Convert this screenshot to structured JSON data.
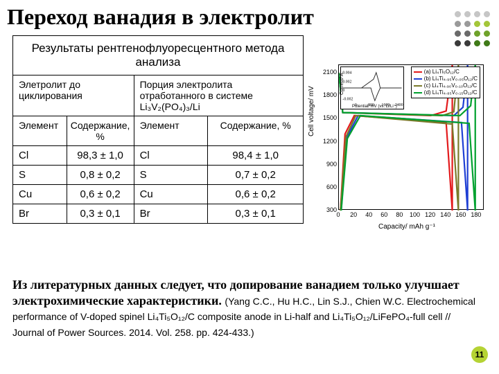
{
  "title": "Переход ванадия в электролит",
  "dots_colors": [
    "#c6c6c6",
    "#c6c6c6",
    "#c6c6c6",
    "#c6c6c6",
    "#9a9a9a",
    "#9a9a9a",
    "#a4c639",
    "#a4c639",
    "#6a6a6a",
    "#6a6a6a",
    "#6fa22a",
    "#6fa22a",
    "#3a3a3a",
    "#3a3a3a",
    "#3f7a17",
    "#3f7a17"
  ],
  "table": {
    "caption": "Результаты рентгенофлуоресцентного метода анализа",
    "col1_header": "Элетролит до циклирования",
    "col2_header": "Порция электролита отработанного в системе Li₃V₂(PO₄)₃/Li",
    "sub_el": "Элемент",
    "sub_pct": "Содержание, %",
    "rows": [
      {
        "e1": "Cl",
        "v1": "98,3 ± 1,0",
        "e2": "Cl",
        "v2": "98,4 ± 1,0"
      },
      {
        "e1": "S",
        "v1": "0,8 ± 0,2",
        "e2": "S",
        "v2": "0,7 ± 0,2"
      },
      {
        "e1": "Cu",
        "v1": "0,6 ± 0,2",
        "e2": "Cu",
        "v2": "0,6 ± 0,2"
      },
      {
        "e1": "Br",
        "v1": "0,3 ± 0,1",
        "e2": "Br",
        "v2": "0,3 ± 0,1"
      }
    ]
  },
  "chart": {
    "type": "line",
    "ylabel": "Cell voltage/ mV",
    "xlabel": "Capacity/ mAh g⁻¹",
    "xlim": [
      0,
      190
    ],
    "ylim": [
      300,
      2200
    ],
    "xticks": [
      0,
      20,
      40,
      60,
      80,
      100,
      120,
      140,
      160,
      180
    ],
    "yticks": [
      300,
      600,
      900,
      1200,
      1500,
      1800,
      2100
    ],
    "background_color": "#ffffff",
    "legend": [
      {
        "label": "(a) Li₄Ti₅O₁₂/C",
        "color": "#e31a1c"
      },
      {
        "label": "(b) Li₄Ti₄.₉₅V₀.₀₅O₁₂/C",
        "color": "#1f3fd4"
      },
      {
        "label": "(c) Li₄Ti₄.₉₀V₀.₁₀O₁₂/C",
        "color": "#7a7a2a"
      },
      {
        "label": "(d) Li₄Ti₄.₈₅V₀.₁₅O₁₂/C",
        "color": "#00a02e"
      }
    ],
    "series": [
      {
        "color": "#e31a1c",
        "width": 2.2,
        "pts": [
          [
            0,
            2100
          ],
          [
            5,
            1580
          ],
          [
            120,
            1540
          ],
          [
            140,
            1600
          ],
          [
            148,
            2200
          ],
          [
            148,
            300
          ],
          [
            140,
            1450
          ],
          [
            20,
            1540
          ],
          [
            8,
            1300
          ],
          [
            2,
            300
          ]
        ]
      },
      {
        "color": "#1f3fd4",
        "width": 2.2,
        "pts": [
          [
            0,
            2100
          ],
          [
            5,
            1580
          ],
          [
            150,
            1540
          ],
          [
            162,
            1650
          ],
          [
            168,
            2200
          ],
          [
            168,
            300
          ],
          [
            160,
            1450
          ],
          [
            25,
            1540
          ],
          [
            10,
            1250
          ],
          [
            3,
            300
          ]
        ]
      },
      {
        "color": "#7a7a2a",
        "width": 2.2,
        "pts": [
          [
            0,
            2100
          ],
          [
            5,
            1580
          ],
          [
            135,
            1540
          ],
          [
            150,
            1590
          ],
          [
            156,
            2200
          ],
          [
            156,
            300
          ],
          [
            148,
            1430
          ],
          [
            22,
            1540
          ],
          [
            9,
            1260
          ],
          [
            2,
            300
          ]
        ]
      },
      {
        "color": "#00a02e",
        "width": 2.2,
        "pts": [
          [
            0,
            2100
          ],
          [
            5,
            1580
          ],
          [
            158,
            1540
          ],
          [
            172,
            1670
          ],
          [
            178,
            2200
          ],
          [
            178,
            300
          ],
          [
            170,
            1440
          ],
          [
            28,
            1540
          ],
          [
            11,
            1240
          ],
          [
            3,
            300
          ]
        ]
      }
    ],
    "series_labels": [
      {
        "text": "(a)",
        "x": 148,
        "y": 1850,
        "color": "#e31a1c"
      },
      {
        "text": "(b)",
        "x": 163,
        "y": 1880,
        "color": "#1f3fd4"
      },
      {
        "text": "(c)",
        "x": 153,
        "y": 1920,
        "color": "#7a7a2a"
      },
      {
        "text": "(d)",
        "x": 175,
        "y": 1950,
        "color": "#00a02e"
      }
    ],
    "inset": {
      "ylabel": "Current/ A",
      "xlabel": "Potential/ mV (vs. Li/Li⁺)",
      "yticks": [
        "0.004",
        "0.002",
        "0",
        "-0.002"
      ],
      "xticks": [
        "0",
        "800",
        "1600",
        "2400"
      ],
      "curve_color": "#2a2a2a",
      "curve": [
        [
          0,
          31
        ],
        [
          30,
          31
        ],
        [
          48,
          18
        ],
        [
          52,
          8
        ],
        [
          56,
          22
        ],
        [
          58,
          31
        ],
        [
          90,
          31
        ],
        [
          58,
          31
        ],
        [
          54,
          40
        ],
        [
          50,
          50
        ],
        [
          46,
          38
        ],
        [
          44,
          31
        ],
        [
          0,
          31
        ]
      ]
    }
  },
  "footer": {
    "main": "Из литературных  данных следует, что допирование ванадием только улучшает электрохимические характеристики.",
    "citation": "(Yang C.C., Hu H.C., Lin S.J., Chien W.C. Electrochemical performance of V-doped spinel Li₄Ti₅O₁₂/C composite anode in Li-half and Li₄Ti₅O₁₂/LiFePO₄-full cell // Journal of Power Sources. 2014. Vol. 258. pp. 424-433.)"
  },
  "page_number": "11"
}
